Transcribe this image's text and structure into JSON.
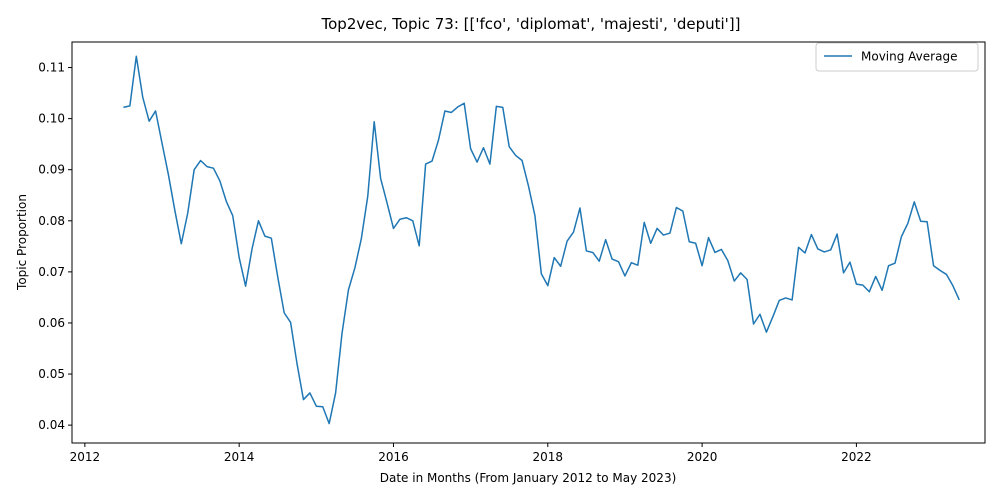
{
  "chart_data": {
    "type": "line",
    "title": "Top2vec, Topic 73: [['fco', 'diplomat', 'majesti', 'deputi']]",
    "xlabel": "Date in Months (From January 2012 to May 2023)",
    "ylabel": "Topic Proportion",
    "xlim": [
      "2011-11",
      "2023-09"
    ],
    "ylim": [
      0.0365,
      0.115
    ],
    "x_ticks": [
      "2012",
      "2014",
      "2016",
      "2018",
      "2020",
      "2022"
    ],
    "y_ticks": [
      "0.04",
      "0.05",
      "0.06",
      "0.07",
      "0.08",
      "0.09",
      "0.10",
      "0.11"
    ],
    "grid": false,
    "legend_position": "top-right",
    "line_color": "#1f77b4",
    "series": [
      {
        "name": "Moving Average",
        "x": [
          "2012-07",
          "2012-08",
          "2012-09",
          "2012-10",
          "2012-11",
          "2012-12",
          "2013-01",
          "2013-02",
          "2013-03",
          "2013-04",
          "2013-05",
          "2013-06",
          "2013-07",
          "2013-08",
          "2013-09",
          "2013-10",
          "2013-11",
          "2013-12",
          "2014-01",
          "2014-02",
          "2014-03",
          "2014-04",
          "2014-05",
          "2014-06",
          "2014-07",
          "2014-08",
          "2014-09",
          "2014-10",
          "2014-11",
          "2014-12",
          "2015-01",
          "2015-02",
          "2015-03",
          "2015-04",
          "2015-05",
          "2015-06",
          "2015-07",
          "2015-08",
          "2015-09",
          "2015-10",
          "2015-11",
          "2015-12",
          "2016-01",
          "2016-02",
          "2016-03",
          "2016-04",
          "2016-05",
          "2016-06",
          "2016-07",
          "2016-08",
          "2016-09",
          "2016-10",
          "2016-11",
          "2016-12",
          "2017-01",
          "2017-02",
          "2017-03",
          "2017-04",
          "2017-05",
          "2017-06",
          "2017-07",
          "2017-08",
          "2017-09",
          "2017-10",
          "2017-11",
          "2017-12",
          "2018-01",
          "2018-02",
          "2018-03",
          "2018-04",
          "2018-05",
          "2018-06",
          "2018-07",
          "2018-08",
          "2018-09",
          "2018-10",
          "2018-11",
          "2018-12",
          "2019-01",
          "2019-02",
          "2019-03",
          "2019-04",
          "2019-05",
          "2019-06",
          "2019-07",
          "2019-08",
          "2019-09",
          "2019-10",
          "2019-11",
          "2019-12",
          "2020-01",
          "2020-02",
          "2020-03",
          "2020-04",
          "2020-05",
          "2020-06",
          "2020-07",
          "2020-08",
          "2020-09",
          "2020-10",
          "2020-11",
          "2020-12",
          "2021-01",
          "2021-02",
          "2021-03",
          "2021-04",
          "2021-05",
          "2021-06",
          "2021-07",
          "2021-08",
          "2021-09",
          "2021-10",
          "2021-11",
          "2021-12",
          "2022-01",
          "2022-02",
          "2022-03",
          "2022-04",
          "2022-05",
          "2022-06",
          "2022-07",
          "2022-08",
          "2022-09",
          "2022-10",
          "2022-11",
          "2022-12",
          "2023-01",
          "2023-02",
          "2023-03",
          "2023-04",
          "2023-05"
        ],
        "y": [
          0.1022,
          0.1025,
          0.1122,
          0.1042,
          0.0995,
          0.1015,
          0.0952,
          0.089,
          0.082,
          0.0755,
          0.0815,
          0.09,
          0.0918,
          0.0906,
          0.0903,
          0.0878,
          0.0838,
          0.081,
          0.0728,
          0.0672,
          0.0745,
          0.08,
          0.077,
          0.0766,
          0.069,
          0.062,
          0.0601,
          0.052,
          0.045,
          0.0463,
          0.0437,
          0.0436,
          0.0403,
          0.0463,
          0.058,
          0.0665,
          0.0708,
          0.0765,
          0.0848,
          0.0994,
          0.0883,
          0.0835,
          0.0785,
          0.0803,
          0.0806,
          0.08,
          0.0751,
          0.0911,
          0.0917,
          0.0958,
          0.1015,
          0.1012,
          0.1023,
          0.103,
          0.0941,
          0.0915,
          0.0943,
          0.0911,
          0.1024,
          0.1022,
          0.0945,
          0.0928,
          0.0918,
          0.0868,
          0.081,
          0.0696,
          0.0673,
          0.0728,
          0.0711,
          0.076,
          0.0778,
          0.0825,
          0.0741,
          0.0738,
          0.0721,
          0.0763,
          0.0725,
          0.072,
          0.0692,
          0.0718,
          0.0713,
          0.0797,
          0.0756,
          0.0785,
          0.0772,
          0.0776,
          0.0826,
          0.0819,
          0.0759,
          0.0756,
          0.0712,
          0.0767,
          0.0738,
          0.0744,
          0.0722,
          0.0682,
          0.0698,
          0.0685,
          0.0598,
          0.0617,
          0.0582,
          0.0612,
          0.0644,
          0.0649,
          0.0645,
          0.0748,
          0.0737,
          0.0773,
          0.0745,
          0.0739,
          0.0743,
          0.0774,
          0.0698,
          0.0719,
          0.0676,
          0.0674,
          0.0661,
          0.0691,
          0.0664,
          0.0712,
          0.0717,
          0.0769,
          0.0795,
          0.0837,
          0.0799,
          0.0798,
          0.0712,
          0.0703,
          0.0695,
          0.0673,
          0.0645
        ]
      }
    ]
  }
}
